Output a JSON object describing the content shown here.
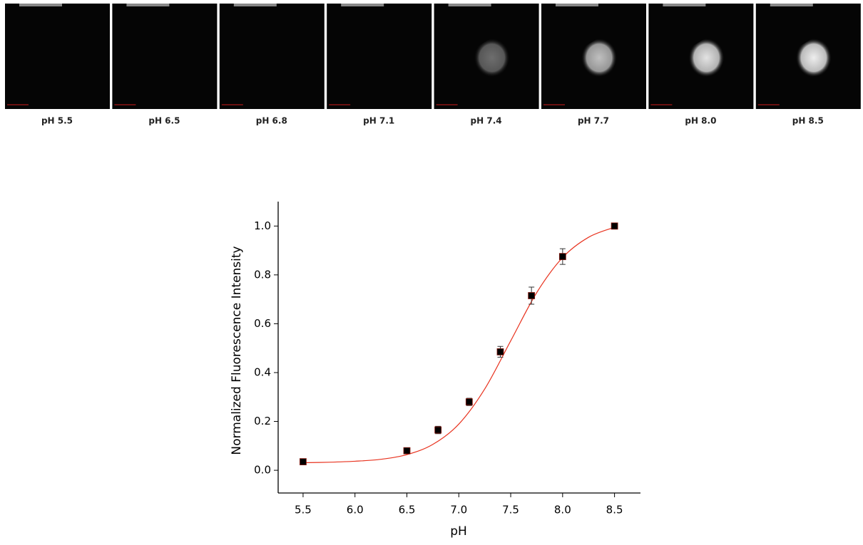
{
  "panels": [
    "pH 5.5",
    "pH 6.5",
    "pH 6.8",
    "pH 7.1",
    "pH 7.4",
    "pH 7.7",
    "pH 8.0",
    "pH 8.5"
  ],
  "chart_data": {
    "type": "scatter",
    "x_label": "pH",
    "y_label": "Normalized Fluorescence Intensity",
    "xlim": [
      5.26,
      8.75
    ],
    "xticks": [
      5.5,
      {
        "value": 6,
        "label": "6.0"
      },
      6.5,
      {
        "value": 7,
        "label": "7.0"
      },
      7.5,
      {
        "value": 8,
        "label": "8.0"
      },
      8.5
    ],
    "ylim": [
      -0.093,
      1.1
    ],
    "yticks": [
      {
        "value": 0,
        "label": "0.0"
      },
      0.2,
      0.4,
      0.6,
      0.8,
      {
        "value": 1,
        "label": "1.0"
      }
    ],
    "series": [
      {
        "x": [
          5.5,
          6.5,
          6.8,
          7.1,
          7.4,
          7.7,
          8.0,
          8.5
        ],
        "values": [
          0.035,
          0.08,
          0.165,
          0.28,
          0.485,
          0.715,
          0.875,
          1.0
        ],
        "errors": [
          0.005,
          0.008,
          0.015,
          0.015,
          0.022,
          0.035,
          0.032,
          0.005
        ],
        "color": "#000000"
      },
      {
        "x": [
          5.5,
          5.75,
          6.0,
          6.25,
          6.5,
          6.75,
          7.0,
          7.25,
          7.5,
          7.75,
          8.0,
          8.25,
          8.5
        ],
        "values": [
          0.031,
          0.033,
          0.037,
          0.045,
          0.064,
          0.106,
          0.189,
          0.333,
          0.53,
          0.727,
          0.871,
          0.954,
          0.995
        ],
        "color": "#e8321e"
      }
    ]
  }
}
